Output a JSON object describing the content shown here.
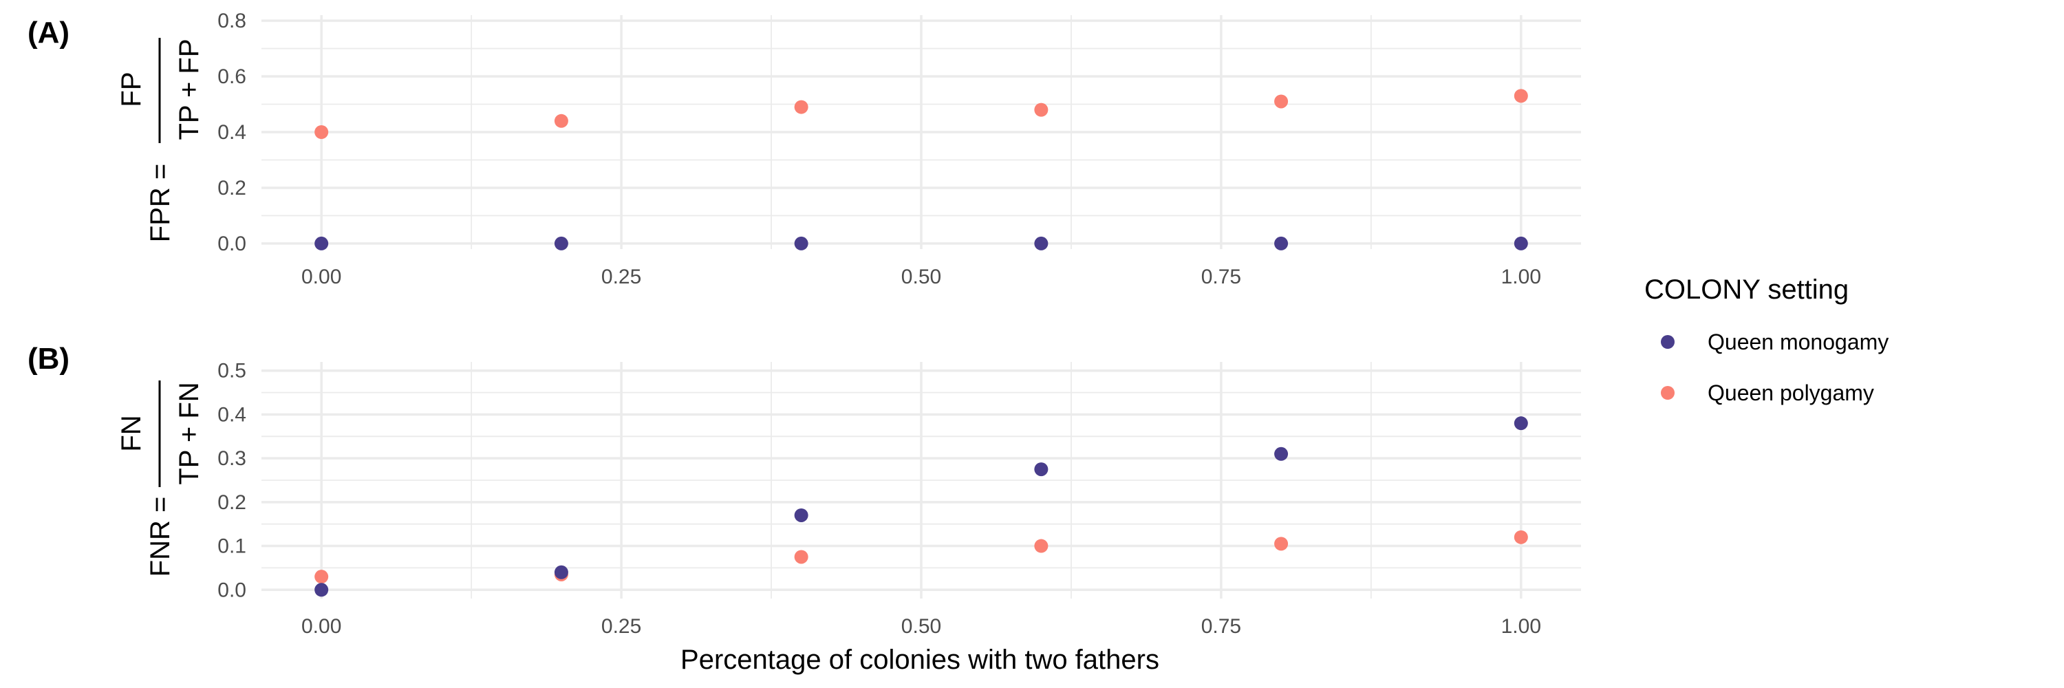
{
  "figure": {
    "legend": {
      "title": "COLONY setting",
      "entries": [
        {
          "label": "Queen monogamy",
          "color": "#483D8B"
        },
        {
          "label": "Queen polygamy",
          "color": "#FA8072"
        }
      ]
    },
    "xlabel": "Percentage of colonies with two fathers"
  },
  "chart_data": [
    {
      "type": "scatter",
      "panel": "(A)",
      "ylabel": {
        "lhs": "FPR =",
        "numerator": "FP",
        "denominator": "TP + FP"
      },
      "xlim": [
        -0.05,
        1.05
      ],
      "ylim": [
        -0.02,
        0.82
      ],
      "xticks": [
        "0.00",
        "0.25",
        "0.50",
        "0.75",
        "1.00"
      ],
      "yticks": [
        "0.0",
        "0.2",
        "0.4",
        "0.6",
        "0.8"
      ],
      "x": [
        0.0,
        0.2,
        0.4,
        0.6,
        0.8,
        1.0
      ],
      "series": [
        {
          "name": "Queen monogamy",
          "values": [
            0.0,
            0.0,
            0.0,
            0.0,
            0.0,
            0.0
          ]
        },
        {
          "name": "Queen polygamy",
          "values": [
            0.4,
            0.44,
            0.49,
            0.48,
            0.51,
            0.53
          ]
        }
      ]
    },
    {
      "type": "scatter",
      "panel": "(B)",
      "ylabel": {
        "lhs": "FNR =",
        "numerator": "FN",
        "denominator": "TP + FN"
      },
      "xlim": [
        -0.05,
        1.05
      ],
      "ylim": [
        -0.02,
        0.52
      ],
      "xticks": [
        "0.00",
        "0.25",
        "0.50",
        "0.75",
        "1.00"
      ],
      "yticks": [
        "0.0",
        "0.1",
        "0.2",
        "0.3",
        "0.4",
        "0.5"
      ],
      "x": [
        0.0,
        0.2,
        0.4,
        0.6,
        0.8,
        1.0
      ],
      "series": [
        {
          "name": "Queen monogamy",
          "values": [
            0.0,
            0.04,
            0.17,
            0.275,
            0.31,
            0.38
          ]
        },
        {
          "name": "Queen polygamy",
          "values": [
            0.03,
            0.035,
            0.075,
            0.1,
            0.105,
            0.12
          ]
        }
      ]
    }
  ]
}
